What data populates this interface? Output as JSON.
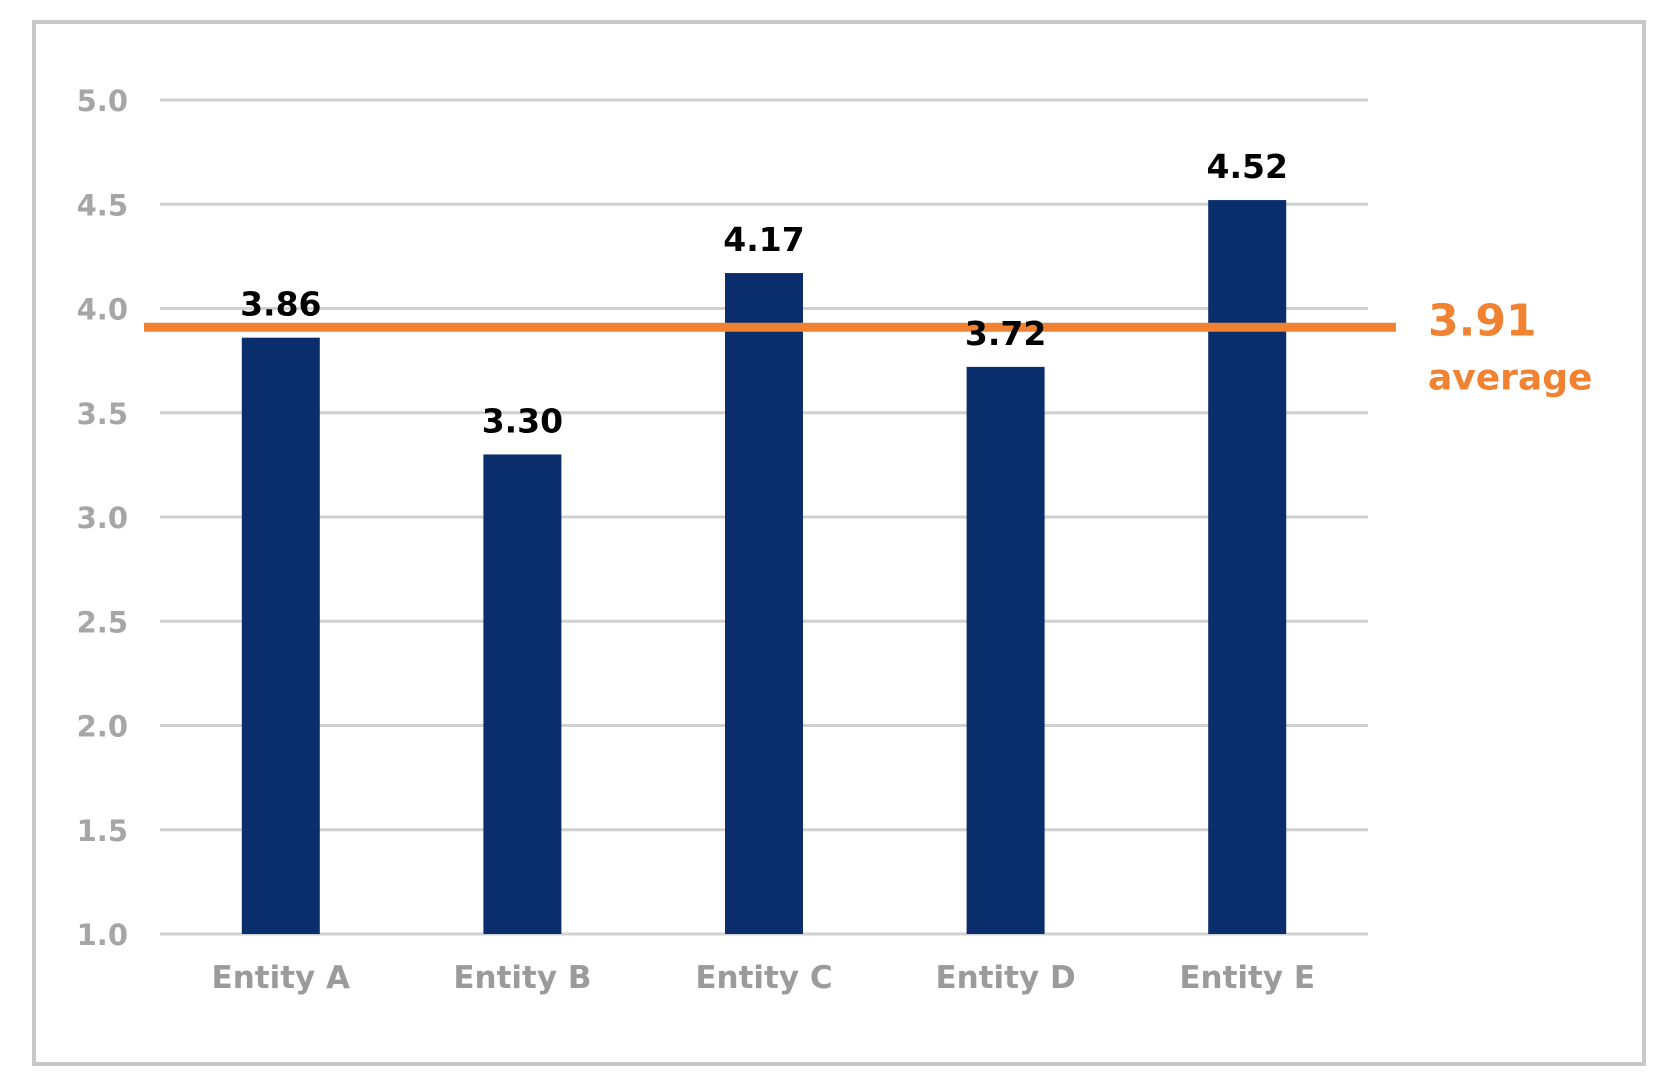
{
  "chart_data": {
    "type": "bar",
    "categories": [
      "Entity A",
      "Entity B",
      "Entity C",
      "Entity D",
      "Entity E"
    ],
    "values": [
      3.86,
      3.3,
      4.17,
      3.72,
      4.52
    ],
    "value_labels": [
      "3.86",
      "3.30",
      "4.17",
      "3.72",
      "4.52"
    ],
    "ylim": [
      1.0,
      5.0
    ],
    "y_ticks": [
      "1.0",
      "1.5",
      "2.0",
      "2.5",
      "3.0",
      "3.5",
      "4.0",
      "4.5",
      "5.0"
    ],
    "grid": true,
    "average": {
      "value": 3.91,
      "value_label": "3.91",
      "text": "average"
    },
    "colors": {
      "bar": "#0a2d6b",
      "average": "#f08232",
      "grid": "#d0d0d0",
      "frame": "#c8c8c8"
    }
  }
}
